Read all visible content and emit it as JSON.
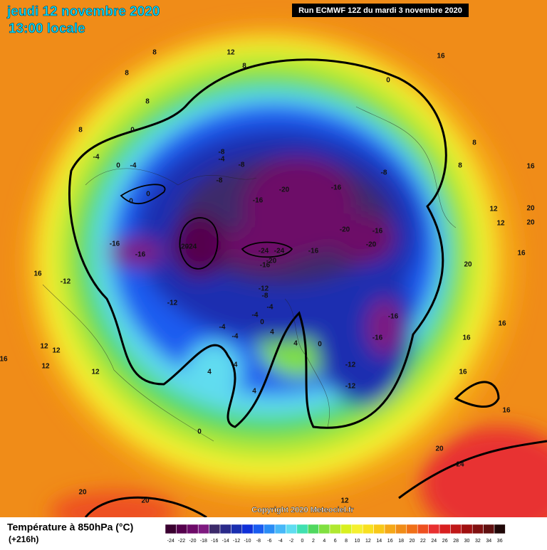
{
  "header": {
    "date": "jeudi 12 novembre 2020",
    "time": "13:00 locale",
    "run": "Run ECMWF 12Z du mardi 3 novembre 2020"
  },
  "footer": {
    "title": "Température à 850hPa (°C)",
    "lead": "(+216h)",
    "copyright": "Copyright 2020 Meteociel.fr"
  },
  "legend": {
    "values": [
      -24,
      -22,
      -20,
      -18,
      -16,
      -14,
      -12,
      -10,
      -8,
      -6,
      -4,
      -2,
      0,
      2,
      4,
      6,
      8,
      10,
      12,
      14,
      16,
      18,
      20,
      22,
      24,
      26,
      28,
      30,
      32,
      34,
      36
    ],
    "colors": [
      "#3a0030",
      "#55004d",
      "#6d0a68",
      "#7e1a80",
      "#3c2a6a",
      "#2a2a8a",
      "#1a2fb0",
      "#1030d8",
      "#1a5cf0",
      "#2a8cf5",
      "#48b8f8",
      "#60dcf0",
      "#40e0b0",
      "#50d860",
      "#80e040",
      "#b0e830",
      "#d8f020",
      "#f5f030",
      "#f8e020",
      "#f8c818",
      "#f5a818",
      "#f08c18",
      "#f07018",
      "#ee5020",
      "#e83030",
      "#d82020",
      "#c01818",
      "#a01010",
      "#801010",
      "#601010",
      "#200808"
    ]
  },
  "map": {
    "contour_labels": [
      12,
      8,
      16,
      8,
      8,
      0,
      8,
      8,
      0,
      8,
      -8,
      -4,
      0,
      -4,
      -4,
      -8,
      8,
      16,
      -8,
      -8,
      -20,
      -16,
      0,
      0,
      -16,
      12,
      20,
      20,
      12,
      -20,
      -16,
      -16,
      -20,
      -24,
      -24,
      -24,
      -16,
      -20,
      -16,
      16,
      -20,
      -16,
      16,
      -12,
      20,
      -12,
      -8,
      -12,
      -4,
      -4,
      -16,
      16,
      0,
      -4,
      4,
      -16,
      16,
      12,
      12,
      0,
      16,
      4,
      -4,
      12,
      12,
      -12,
      4,
      -4,
      16,
      4,
      -12,
      16,
      0,
      20,
      24,
      20,
      20,
      12
    ]
  }
}
